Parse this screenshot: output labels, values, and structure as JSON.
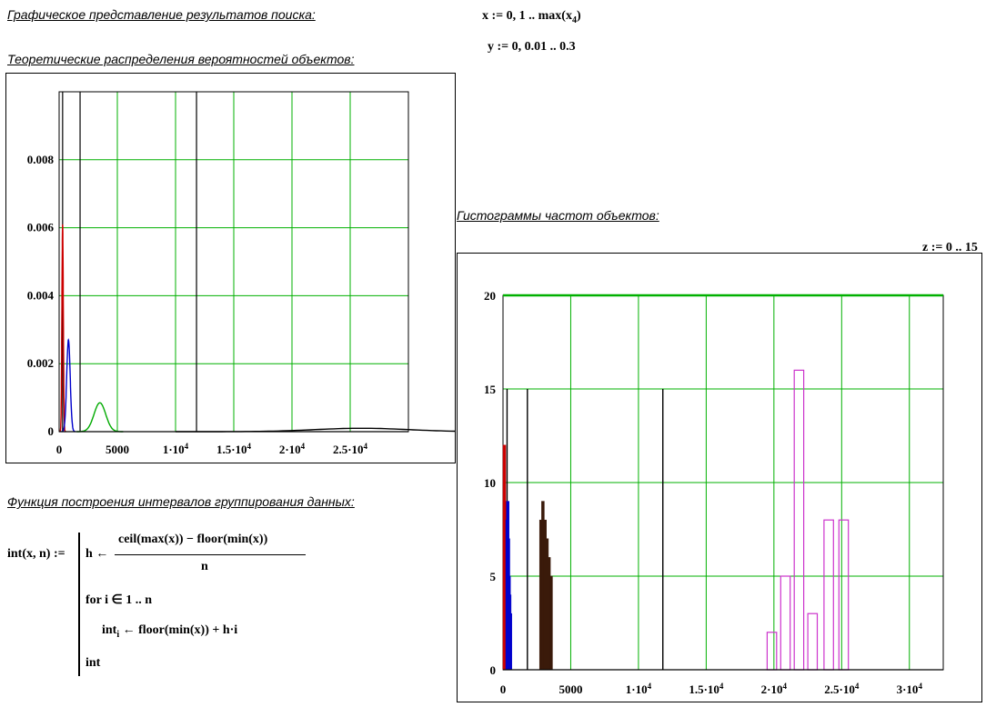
{
  "headings": {
    "graphical": "Графическое представление результатов поиска:",
    "theoretical": "Теоретические распределения вероятностей объектов:",
    "histograms": "Гистограммы частот объектов:",
    "intervals": "Функция построения интервалов группирования данных:"
  },
  "formulas": {
    "x_range": "x := 0, 1 .. max(x",
    "x_sub": "4",
    "x_close": ")",
    "y_range": "y := 0, 0.01 .. 0.3",
    "z_range": "z := 0 .. 15"
  },
  "program": {
    "signature": "int(x, n) :=",
    "line1_lhs": "h ←",
    "line1_num": "ceil(max(x)) − floor(min(x))",
    "line1_den": "n",
    "line2": "for  i ∈ 1 .. n",
    "line3_lhs": "int",
    "line3_sub": "i",
    "line3_rhs": "← floor(min(x)) + h·i",
    "line4": "int"
  },
  "chart_data": [
    {
      "type": "line",
      "title": "",
      "xlim": [
        0,
        30000
      ],
      "ylim": [
        0,
        0.01
      ],
      "x_ticks": [
        "0",
        "5000",
        "1·10",
        "1.5·10",
        "2·10",
        "2.5·10"
      ],
      "x_tick_exp": "4",
      "y_ticks": [
        "0",
        "0.002",
        "0.004",
        "0.006",
        "0.008"
      ],
      "grid": true,
      "colors": {
        "grid": "#00b000",
        "series1": "#cc0000",
        "series2": "#0000cc",
        "series3": "#00aa00",
        "series4": "#000000"
      },
      "series": [
        {
          "mu": 300,
          "sigma": 60,
          "peak": 0.0061
        },
        {
          "mu": 800,
          "sigma": 150,
          "peak": 0.0027
        },
        {
          "mu": 3500,
          "sigma": 500,
          "peak": 0.00085
        },
        {
          "mu": 26000,
          "sigma": 4000,
          "peak": 0.0001
        }
      ],
      "vlines": [
        300,
        1800,
        11800
      ]
    },
    {
      "type": "bar",
      "title": "",
      "xlim": [
        0,
        32500
      ],
      "ylim": [
        0,
        20
      ],
      "x_ticks": [
        "0",
        "5000",
        "1·10",
        "1.5·10",
        "2·10",
        "2.5·10",
        "3·10"
      ],
      "x_tick_exp": "4",
      "y_ticks": [
        "0",
        "5",
        "10",
        "15",
        "20"
      ],
      "grid": true,
      "colors": {
        "grid": "#00b000",
        "red": "#cc0000",
        "blue": "#0000cc",
        "brown": "#3a1a0a",
        "magenta": "#cc33cc",
        "black": "#000000"
      },
      "groups": [
        {
          "color": "red",
          "filled": true,
          "x": [
            100,
            150,
            200,
            250,
            300
          ],
          "values": [
            12,
            8,
            4,
            9,
            6
          ]
        },
        {
          "color": "blue",
          "filled": true,
          "x": [
            300,
            350,
            400,
            450,
            500,
            550
          ],
          "values": [
            8,
            9,
            7,
            5,
            4,
            3
          ]
        },
        {
          "color": "brown",
          "filled": true,
          "x": [
            2800,
            2950,
            3100,
            3250,
            3400,
            3550
          ],
          "values": [
            8,
            9,
            8,
            7,
            6,
            5
          ]
        },
        {
          "color": "magenta",
          "filled": false,
          "x": [
            19500,
            20500,
            21500,
            22500,
            23700,
            24800
          ],
          "values": [
            2,
            5,
            16,
            3,
            8,
            8
          ],
          "width": 700
        }
      ],
      "hline": 20,
      "vlines": [
        300,
        1800,
        11800
      ]
    }
  ]
}
